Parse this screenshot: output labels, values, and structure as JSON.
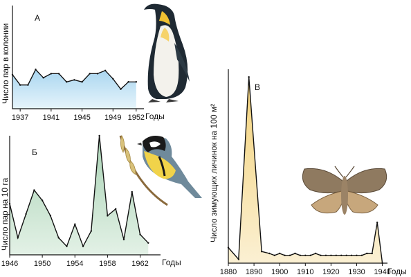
{
  "chart_data": [
    {
      "type": "area",
      "panel_label": "А",
      "title": "",
      "ylabel": "Число пар в колонии",
      "xlabel": "Годы",
      "xlim": [
        1936,
        1953
      ],
      "ylim": [
        0,
        10
      ],
      "x_ticks": [
        1937,
        1941,
        1945,
        1949,
        1952
      ],
      "x": [
        1936,
        1937,
        1938,
        1939,
        1940,
        1941,
        1942,
        1943,
        1944,
        1945,
        1946,
        1947,
        1948,
        1949,
        1950,
        1951,
        1952
      ],
      "values": [
        3.3,
        2.3,
        2.3,
        3.8,
        3.0,
        3.4,
        3.4,
        2.6,
        2.8,
        2.6,
        3.4,
        3.4,
        3.7,
        2.9,
        1.9,
        2.6,
        2.6
      ],
      "fill_color": "#c9e6f5",
      "line_color": "#111111"
    },
    {
      "type": "area",
      "panel_label": "Б",
      "title": "",
      "ylabel": "Число пар на 10 га",
      "xlabel": "Годы",
      "xlim": [
        1946,
        1964.5
      ],
      "ylim": [
        0,
        14
      ],
      "x_ticks": [
        1946,
        1950,
        1954,
        1958,
        1962
      ],
      "x": [
        1946,
        1947,
        1948,
        1949,
        1950,
        1951,
        1952,
        1953,
        1954,
        1955,
        1956,
        1957,
        1958,
        1959,
        1960,
        1961,
        1962,
        1963
      ],
      "values": [
        6.0,
        2.0,
        4.8,
        7.6,
        6.4,
        4.6,
        2.0,
        1.0,
        3.6,
        1.0,
        2.8,
        14.0,
        4.6,
        5.4,
        1.8,
        7.4,
        2.4,
        1.4
      ],
      "fill_color": "#c8e3cf",
      "line_color": "#111111"
    },
    {
      "type": "area",
      "panel_label": "В",
      "title": "",
      "ylabel": "Число зимующих личинок на 100 м²",
      "xlabel": "Годы",
      "xlim": [
        1880,
        1942
      ],
      "ylim": [
        0,
        100
      ],
      "x_ticks": [
        1880,
        1890,
        1900,
        1910,
        1920,
        1930,
        1940
      ],
      "x": [
        1880,
        1884,
        1888,
        1893,
        1896,
        1898,
        1900,
        1902,
        1904,
        1906,
        1908,
        1910,
        1912,
        1914,
        1916,
        1918,
        1920,
        1922,
        1924,
        1926,
        1928,
        1930,
        1932,
        1934,
        1936,
        1938,
        1940
      ],
      "values": [
        8,
        2,
        96,
        6,
        5,
        4,
        5,
        4,
        4,
        5,
        4,
        4,
        4,
        5,
        4,
        4,
        4,
        4,
        4,
        4,
        4,
        4,
        4,
        5,
        5,
        21,
        0
      ],
      "fill_color": "#f7e3a9",
      "line_color": "#111111"
    }
  ],
  "illustrations": {
    "a": "penguin-icon",
    "b": "titmouse-icon",
    "c": "moth-icon"
  }
}
